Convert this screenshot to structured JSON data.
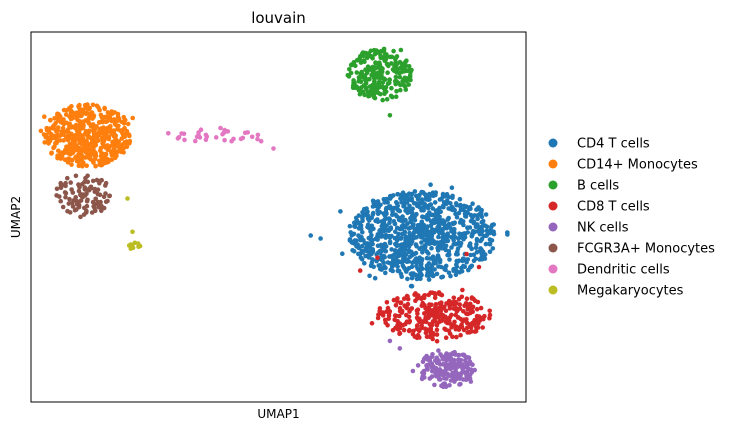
{
  "chart_data": {
    "type": "scatter",
    "title": "louvain",
    "xlabel": "UMAP1",
    "ylabel": "UMAP2",
    "grid": false,
    "legend_position": "right",
    "xlim": [
      0,
      100
    ],
    "ylim": [
      0,
      100
    ],
    "ticks": "none",
    "series": [
      {
        "name": "CD4 T cells",
        "color": "#1f77b4",
        "clusters": [
          {
            "cx": 79.0,
            "cy": 45.0,
            "rx": 15.0,
            "ry": 12.0,
            "n": 900
          }
        ],
        "outliers": [
          [
            56.5,
            45.0
          ],
          [
            58.5,
            44.2
          ],
          [
            62.5,
            51.5
          ]
        ]
      },
      {
        "name": "CD14+ Monocytes",
        "color": "#ff7f0e",
        "clusters": [
          {
            "cx": 11.5,
            "cy": 72.0,
            "rx": 9.0,
            "ry": 8.5,
            "n": 520
          }
        ]
      },
      {
        "name": "B cells",
        "color": "#2ca02c",
        "clusters": [
          {
            "cx": 70.5,
            "cy": 88.5,
            "rx": 6.5,
            "ry": 7.0,
            "n": 240
          }
        ],
        "outliers": [
          [
            72.5,
            77.5
          ]
        ]
      },
      {
        "name": "CD8 T cells",
        "color": "#d62728",
        "clusters": [
          {
            "cx": 81.5,
            "cy": 23.5,
            "rx": 11.5,
            "ry": 6.5,
            "n": 300
          }
        ],
        "outliers": [
          [
            66.5,
            35.5
          ],
          [
            70.0,
            39.0
          ],
          [
            88.0,
            40.0
          ],
          [
            90.5,
            36.5
          ]
        ]
      },
      {
        "name": "NK cells",
        "color": "#9467bd",
        "clusters": [
          {
            "cx": 84.0,
            "cy": 9.0,
            "rx": 6.0,
            "ry": 5.0,
            "n": 180
          }
        ],
        "outliers": [
          [
            72.5,
            16.5
          ],
          [
            74.5,
            14.5
          ]
        ]
      },
      {
        "name": "FCGR3A+ Monocytes",
        "color": "#8c564b",
        "clusters": [
          {
            "cx": 10.5,
            "cy": 56.0,
            "rx": 5.5,
            "ry": 6.0,
            "n": 100
          }
        ]
      },
      {
        "name": "Dendritic cells",
        "color": "#e377c2",
        "clusters": [
          {
            "cx": 37.0,
            "cy": 72.0,
            "rx": 10.5,
            "ry": 1.8,
            "n": 32
          }
        ],
        "outliers": [
          [
            49.0,
            68.5
          ],
          [
            46.5,
            70.5
          ]
        ]
      },
      {
        "name": "Megakaryocytes",
        "color": "#bcbd22",
        "clusters": [
          {
            "cx": 21.0,
            "cy": 42.0,
            "rx": 1.2,
            "ry": 1.5,
            "n": 10
          }
        ],
        "outliers": [
          [
            19.5,
            55.0
          ],
          [
            20.5,
            46.0
          ]
        ]
      }
    ]
  }
}
